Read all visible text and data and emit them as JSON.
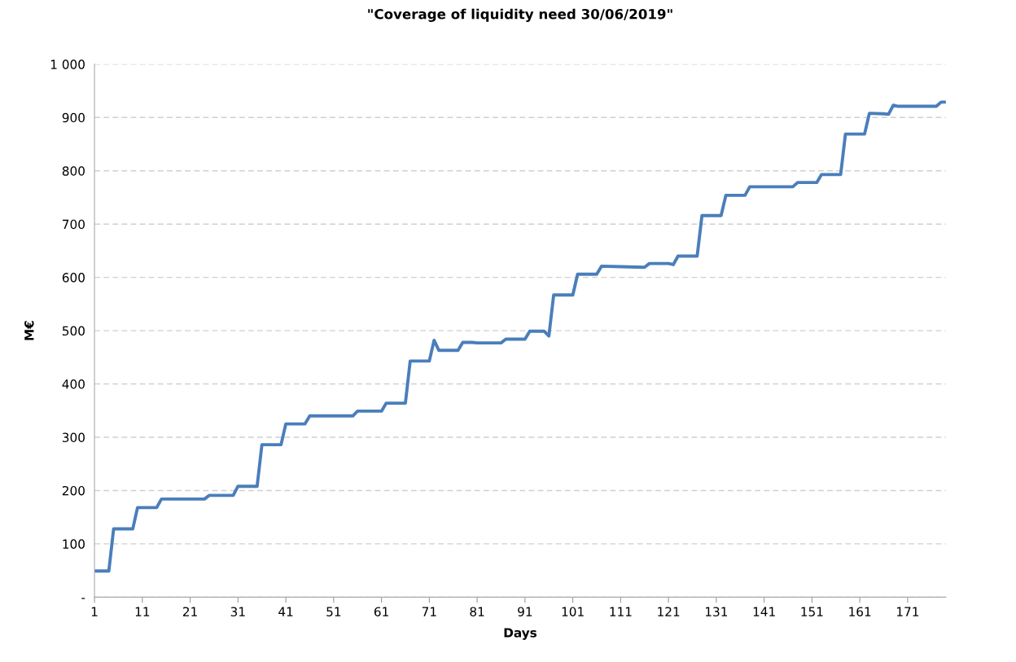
{
  "chart_data": {
    "type": "line",
    "title": "\"Coverage of liquidity need 30/06/2019\"",
    "xlabel": "Days",
    "ylabel": "M€",
    "series": [
      {
        "color": "#4a7ebb",
        "x": [
          1,
          4,
          5,
          9,
          10,
          14,
          15,
          24,
          25,
          30,
          31,
          35,
          36,
          40,
          41,
          45,
          46,
          55,
          56,
          61,
          62,
          66,
          67,
          71,
          72,
          73,
          77,
          78,
          80,
          81,
          86,
          87,
          91,
          92,
          95,
          96,
          97,
          101,
          102,
          106,
          107,
          111,
          116,
          117,
          121,
          122,
          123,
          127,
          128,
          132,
          133,
          137,
          138,
          147,
          148,
          152,
          153,
          157,
          158,
          162,
          163,
          166,
          167,
          168,
          169,
          177,
          178,
          179
        ],
        "values": [
          49,
          49,
          128,
          128,
          168,
          168,
          184,
          184,
          191,
          191,
          208,
          208,
          286,
          286,
          325,
          325,
          340,
          340,
          349,
          349,
          364,
          364,
          443,
          443,
          482,
          463,
          463,
          478,
          478,
          477,
          477,
          484,
          484,
          499,
          499,
          490,
          567,
          567,
          606,
          606,
          621,
          620,
          619,
          626,
          626,
          624,
          640,
          640,
          716,
          716,
          754,
          754,
          770,
          770,
          778,
          778,
          793,
          793,
          869,
          869,
          908,
          907,
          906,
          923,
          921,
          921,
          929,
          929
        ]
      }
    ],
    "xlim": [
      1,
      179
    ],
    "xticks": [
      1,
      11,
      21,
      31,
      41,
      51,
      61,
      71,
      81,
      91,
      101,
      111,
      121,
      131,
      141,
      151,
      161,
      171
    ],
    "ylim": [
      0,
      1000
    ],
    "yticks": [
      {
        "value": 0,
        "label": "-"
      },
      100,
      200,
      300,
      400,
      500,
      600,
      700,
      800,
      900,
      {
        "value": 1000,
        "label": "1 000"
      }
    ],
    "grid": "y",
    "legend": false,
    "marker": "none",
    "line_style": "solid"
  }
}
